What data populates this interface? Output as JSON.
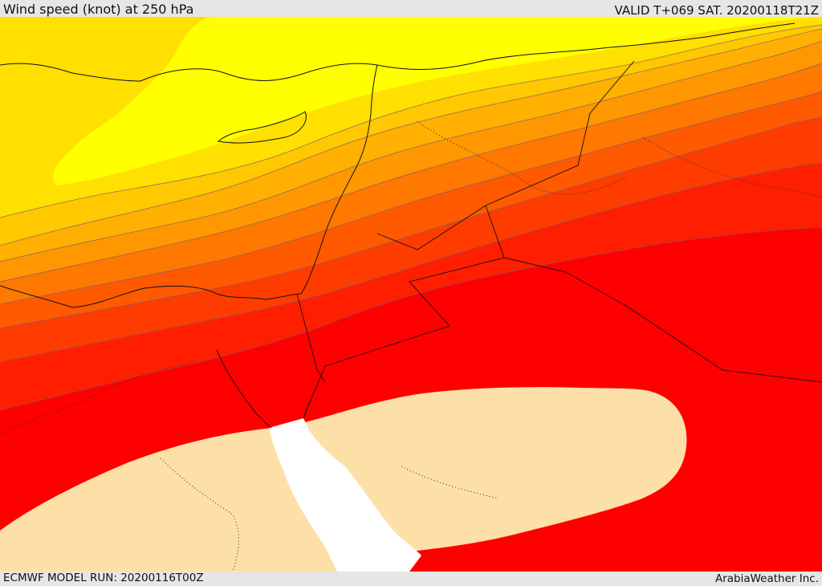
{
  "header": {
    "title": "Wind speed (knot) at 250 hPa",
    "valid": "VALID T+069 SAT. 20200118T21Z"
  },
  "footer": {
    "model_run": "ECMWF MODEL RUN: 20200116T00Z",
    "credit": "ArabiaWeather Inc."
  },
  "colors": {
    "band_1": "#ffff00",
    "band_2": "#ffe000",
    "band_3": "#ffc800",
    "band_4": "#ffb000",
    "band_5": "#ff9800",
    "band_6": "#ff7800",
    "band_7": "#ff5a00",
    "band_8": "#ff3c00",
    "band_9": "#ff1e00",
    "band_10": "#ff0000",
    "core": "#fde0a8",
    "sea": "#ffffff"
  }
}
